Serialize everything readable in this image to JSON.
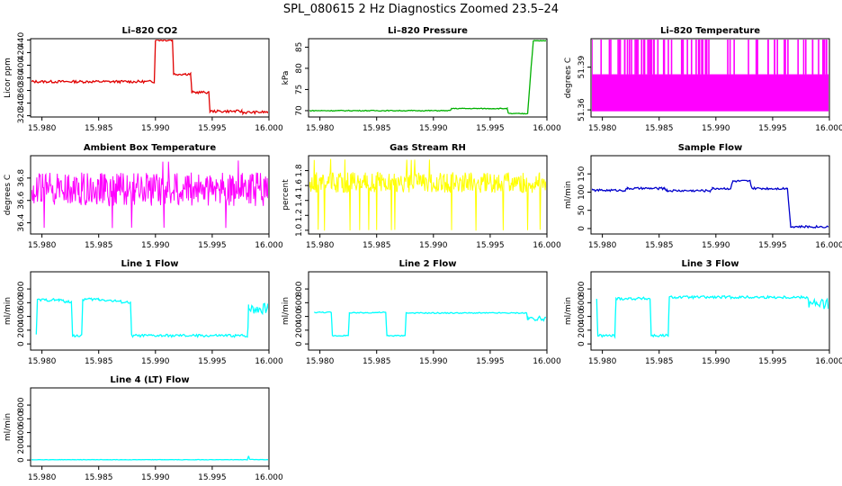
{
  "page": {
    "title": "SPL_080615  2 Hz Diagnostics Zoomed 23.5–24"
  },
  "colors": {
    "red": "#e00000",
    "green": "#00b000",
    "magenta": "#ff00ff",
    "yellow": "#ffff00",
    "blue": "#0000cc",
    "cyan": "#00ffff"
  },
  "chart_data": [
    {
      "type": "line",
      "title": "Li–820 CO2",
      "ylabel": "Licor ppm",
      "color": "red",
      "xlim": [
        15.979,
        16.0
      ],
      "ylim": [
        318,
        442
      ],
      "xticks": [
        "15.980",
        "15.985",
        "15.990",
        "15.995",
        "16.000"
      ],
      "yticks": [
        "320",
        "340",
        "360",
        "380",
        "400",
        "420",
        "440"
      ],
      "series": [
        {
          "x": [
            15.979,
            15.9899,
            15.99,
            15.9915,
            15.9916,
            15.9931,
            15.9932,
            15.9947,
            15.9948,
            15.9976,
            15.9977,
            16.0
          ],
          "y": [
            374,
            374,
            440,
            440,
            386,
            386,
            357,
            357,
            327,
            327,
            325,
            326
          ]
        }
      ],
      "noise": 2
    },
    {
      "type": "line",
      "title": "Li–820 Pressure",
      "ylabel": "kPa",
      "color": "green",
      "xlim": [
        15.979,
        16.0
      ],
      "ylim": [
        68.5,
        87
      ],
      "xticks": [
        "15.980",
        "15.985",
        "15.990",
        "15.995",
        "16.000"
      ],
      "yticks": [
        "70",
        "75",
        "80",
        "85"
      ],
      "series": [
        {
          "x": [
            15.979,
            15.9915,
            15.9916,
            15.9965,
            15.9966,
            15.9983,
            15.9986,
            15.9988,
            16.0
          ],
          "y": [
            70,
            70,
            70.5,
            70.5,
            69.3,
            69.3,
            80,
            86.5,
            86.5
          ]
        }
      ],
      "noise": 0.1
    },
    {
      "type": "line",
      "title": "Li–820 Temperature",
      "ylabel": "degrees C",
      "color": "magenta",
      "xlim": [
        15.979,
        16.0
      ],
      "ylim": [
        51.355,
        51.41
      ],
      "xticks": [
        "15.980",
        "15.985",
        "15.990",
        "15.995",
        "16.000"
      ],
      "yticks": [
        "51.36",
        "51.39"
      ],
      "series": [
        {
          "x": [
            15.979,
            16.0
          ],
          "y": [
            51.36,
            51.385
          ]
        }
      ],
      "pattern": "band-spikes",
      "band": [
        51.359,
        51.385
      ],
      "spike_top": 51.41
    },
    {
      "type": "line",
      "title": "Ambient Box Temperature",
      "ylabel": "degrees C",
      "color": "magenta",
      "xlim": [
        15.979,
        16.0
      ],
      "ylim": [
        36.3,
        37.0
      ],
      "xticks": [
        "15.980",
        "15.985",
        "15.990",
        "15.995",
        "16.000"
      ],
      "yticks": [
        "36.4",
        "36.6",
        "36.8"
      ],
      "series": [
        {
          "x": [
            15.979,
            16.0
          ],
          "y": [
            36.7,
            36.75
          ]
        }
      ],
      "pattern": "noise-band",
      "band": [
        36.55,
        36.85
      ],
      "outliers": [
        36.35,
        36.95
      ]
    },
    {
      "type": "line",
      "title": "Gas Stream RH",
      "ylabel": "percent",
      "color": "yellow",
      "xlim": [
        15.979,
        16.0
      ],
      "ylim": [
        0.95,
        2.0
      ],
      "xticks": [
        "15.980",
        "15.985",
        "15.990",
        "15.995",
        "16.000"
      ],
      "yticks": [
        "1.0",
        "1.2",
        "1.4",
        "1.6",
        "1.8"
      ],
      "series": [
        {
          "x": [
            15.979,
            16.0
          ],
          "y": [
            1.65,
            1.65
          ]
        }
      ],
      "pattern": "noise-band",
      "band": [
        1.5,
        1.78
      ],
      "outliers": [
        1.0,
        1.95
      ]
    },
    {
      "type": "line",
      "title": "Sample Flow",
      "ylabel": "ml/min",
      "color": "blue",
      "xlim": [
        15.979,
        16.0
      ],
      "ylim": [
        -15,
        200
      ],
      "xticks": [
        "15.980",
        "15.985",
        "15.990",
        "15.995",
        "16.000"
      ],
      "yticks": [
        "0",
        "50",
        "100",
        "150"
      ],
      "series": [
        {
          "x": [
            15.979,
            15.982,
            15.9822,
            15.9855,
            15.9857,
            15.9895,
            15.9897,
            15.9913,
            15.9915,
            15.993,
            15.9932,
            15.9963,
            15.9966,
            16.0
          ],
          "y": [
            105,
            105,
            110,
            110,
            104,
            104,
            110,
            110,
            130,
            130,
            110,
            110,
            5,
            5
          ]
        }
      ],
      "noise": 3
    },
    {
      "type": "line",
      "title": "Line 1 Flow",
      "ylabel": "ml/min",
      "color": "cyan",
      "xlim": [
        15.979,
        16.0
      ],
      "ylim": [
        -90,
        1050
      ],
      "xticks": [
        "15.980",
        "15.985",
        "15.990",
        "15.995",
        "16.000"
      ],
      "yticks": [
        "0",
        "200",
        "400",
        "600",
        "800"
      ],
      "series": [
        {
          "x": [
            15.9795,
            15.9796,
            15.9815,
            15.9826,
            15.9827,
            15.9835,
            15.9836,
            15.985,
            15.9878,
            15.9879,
            15.9981,
            15.9982,
            16.0
          ],
          "y": [
            120,
            640,
            640,
            600,
            120,
            120,
            650,
            650,
            600,
            120,
            120,
            520,
            520
          ]
        }
      ],
      "noise": 20,
      "thick_after": 15.9981
    },
    {
      "type": "line",
      "title": "Line 2 Flow",
      "ylabel": "ml/min",
      "color": "cyan",
      "xlim": [
        15.979,
        16.0
      ],
      "ylim": [
        -90,
        1050
      ],
      "xticks": [
        "15.980",
        "15.985",
        "15.990",
        "15.995",
        "16.000"
      ],
      "yticks": [
        "0",
        "200",
        "400",
        "600",
        "800"
      ],
      "series": [
        {
          "x": [
            15.9795,
            15.981,
            15.9811,
            15.9825,
            15.9826,
            15.9858,
            15.9859,
            15.9875,
            15.9876,
            15.9982,
            15.9983,
            16.0
          ],
          "y": [
            460,
            460,
            120,
            120,
            450,
            460,
            120,
            120,
            450,
            450,
            370,
            370
          ]
        }
      ],
      "noise": 8,
      "thick_after": 15.9982
    },
    {
      "type": "line",
      "title": "Line 3 Flow",
      "ylabel": "ml/min",
      "color": "cyan",
      "xlim": [
        15.979,
        16.0
      ],
      "ylim": [
        -90,
        1050
      ],
      "xticks": [
        "15.980",
        "15.985",
        "15.990",
        "15.995",
        "16.000"
      ],
      "yticks": [
        "0",
        "200",
        "400",
        "600",
        "800"
      ],
      "series": [
        {
          "x": [
            15.9795,
            15.9796,
            15.9811,
            15.9812,
            15.9842,
            15.9843,
            15.9858,
            15.9859,
            15.9981,
            15.9982,
            16.0
          ],
          "y": [
            650,
            120,
            120,
            660,
            660,
            120,
            120,
            680,
            680,
            580,
            580
          ]
        }
      ],
      "noise": 20,
      "thick_after": 15.9982
    },
    {
      "type": "line",
      "title": "Line 4 (LT) Flow",
      "ylabel": "ml/min",
      "color": "cyan",
      "xlim": [
        15.979,
        16.0
      ],
      "ylim": [
        -90,
        1050
      ],
      "xticks": [
        "15.980",
        "15.985",
        "15.990",
        "15.995",
        "16.000"
      ],
      "yticks": [
        "0",
        "200",
        "400",
        "600",
        "800"
      ],
      "series": [
        {
          "x": [
            15.979,
            15.9981,
            15.9982,
            15.9983,
            16.0
          ],
          "y": [
            5,
            5,
            60,
            8,
            5
          ]
        }
      ],
      "noise": 3
    }
  ]
}
